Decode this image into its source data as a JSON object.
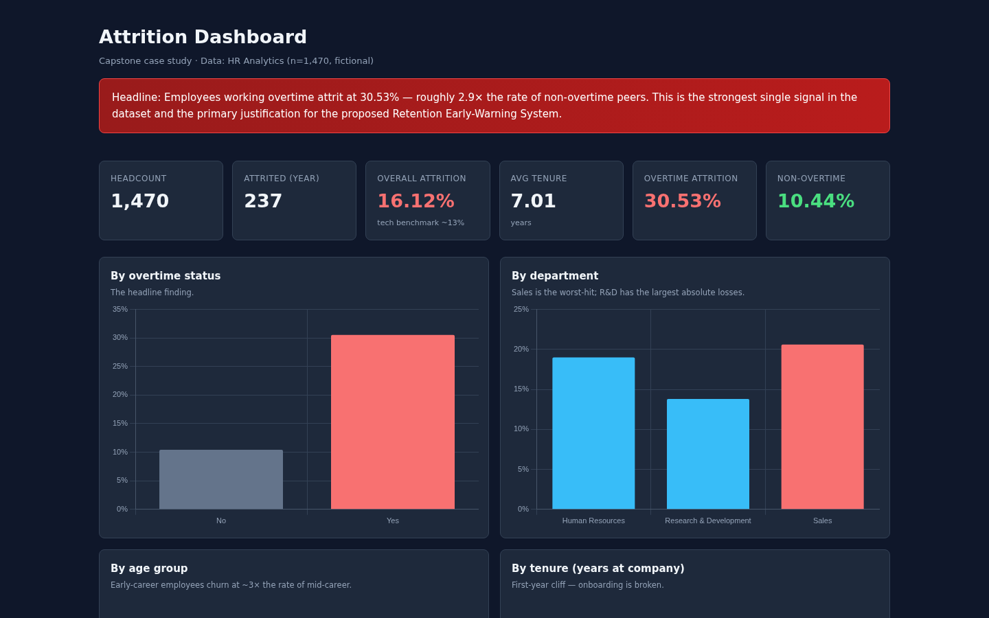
{
  "chart_data": [
    {
      "type": "other",
      "title": "Attrition Dashboard",
      "subtitle": "Capstone case study · Data: HR Analytics (n=1,470, fictional)",
      "annotations": [
        "Headline: Employees working overtime attrit at 30.53% — roughly 2.9× the rate of non-overtime peers. This is the strongest single signal in the dataset and the primary justification for the proposed Retention Early-Warning System."
      ]
    },
    {
      "type": "other",
      "title": "HEADCOUNT",
      "subtitle": "1,470",
      "color": "#f1f5f9"
    },
    {
      "type": "other",
      "title": "ATTRITED (YEAR)",
      "subtitle": "237",
      "color": "#f1f5f9"
    },
    {
      "type": "other",
      "title": "OVERALL ATTRITION",
      "subtitle": "16.12%",
      "color": "#f87171",
      "annotations": [
        "tech benchmark ~13%"
      ]
    },
    {
      "type": "other",
      "title": "AVG TENURE",
      "subtitle": "7.01",
      "color": "#f1f5f9",
      "annotations": [
        "years"
      ]
    },
    {
      "type": "other",
      "title": "OVERTIME ATTRITION",
      "subtitle": "30.53%",
      "color": "#f87171"
    },
    {
      "type": "other",
      "title": "NON-OVERTIME",
      "subtitle": "10.44%",
      "color": "#4ade80"
    },
    {
      "type": "bar",
      "title": "By overtime status",
      "subtitle": "The headline finding.",
      "categories": [
        "No",
        "Yes"
      ],
      "values": [
        10.44,
        30.53
      ],
      "colors": [
        "#64748b",
        "#f87171"
      ],
      "ylim": [
        0,
        35
      ],
      "yticks": [
        {
          "value": 0,
          "label": "0%"
        },
        {
          "value": 5,
          "label": "5%"
        },
        {
          "value": 10,
          "label": "10%"
        },
        {
          "value": 15,
          "label": "15%"
        },
        {
          "value": 20,
          "label": "20%"
        },
        {
          "value": 25,
          "label": "25%"
        },
        {
          "value": 30,
          "label": "30%"
        },
        {
          "value": 35,
          "label": "35%"
        }
      ],
      "grid": true,
      "legend": false
    },
    {
      "type": "bar",
      "title": "By department",
      "subtitle": "Sales is the worst-hit; R&D has the largest absolute losses.",
      "categories": [
        "Human Resources",
        "Research & Development",
        "Sales"
      ],
      "values": [
        19.0,
        13.8,
        20.6
      ],
      "colors": [
        "#38bdf8",
        "#38bdf8",
        "#f87171"
      ],
      "ylim": [
        0,
        25
      ],
      "yticks": [
        {
          "value": 0,
          "label": "0%"
        },
        {
          "value": 5,
          "label": "5%"
        },
        {
          "value": 10,
          "label": "10%"
        },
        {
          "value": 15,
          "label": "15%"
        },
        {
          "value": 20,
          "label": "20%"
        },
        {
          "value": 25,
          "label": "25%"
        }
      ],
      "grid": true,
      "legend": false
    },
    {
      "type": "other",
      "title": "By age group",
      "subtitle": "Early-career employees churn at ~3× the rate of mid-career."
    },
    {
      "type": "other",
      "title": "By tenure (years at company)",
      "subtitle": "First-year cliff — onboarding is broken."
    }
  ]
}
